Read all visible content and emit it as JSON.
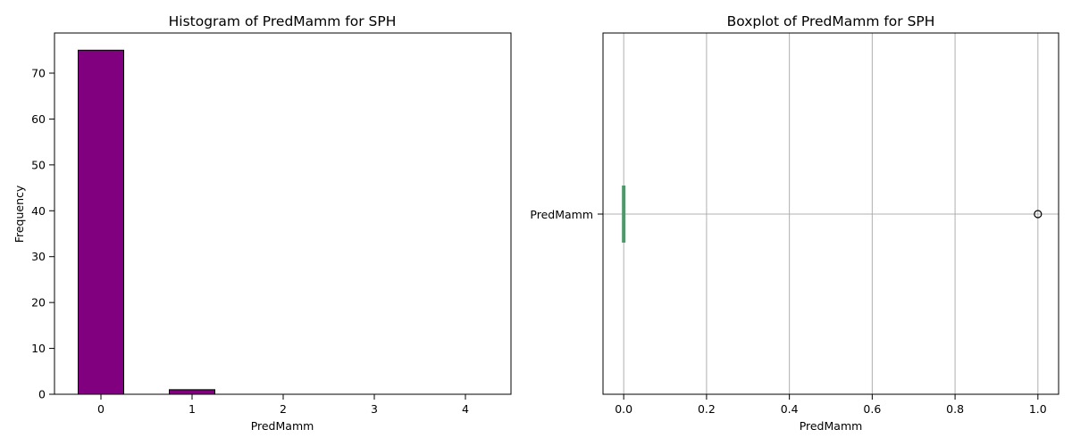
{
  "chart_data": [
    {
      "type": "bar",
      "title": "Histogram of PredMamm for SPH",
      "xlabel": "PredMamm",
      "ylabel": "Frequency",
      "categories": [
        "0",
        "1",
        "2",
        "3",
        "4"
      ],
      "values": [
        75,
        1,
        0,
        0,
        0
      ],
      "ylim": [
        0,
        78.75
      ],
      "yticks": [
        0,
        10,
        20,
        30,
        40,
        50,
        60,
        70
      ],
      "grid": false,
      "bar_color": "#800080",
      "edge_color": "#000000"
    },
    {
      "type": "boxplot",
      "title": "Boxplot of PredMamm for SPH",
      "xlabel": "PredMamm",
      "ylabel": "",
      "category_label": "PredMamm",
      "orientation": "horizontal",
      "stats": {
        "min": 0,
        "q1": 0,
        "median": 0,
        "q3": 0,
        "max": 0
      },
      "outliers": [
        1.0
      ],
      "xlim": [
        -0.05,
        1.05
      ],
      "xticks": [
        0.0,
        0.2,
        0.4,
        0.6,
        0.8,
        1.0
      ],
      "xtick_labels": [
        "0.0",
        "0.2",
        "0.4",
        "0.6",
        "0.8",
        "1.0"
      ],
      "grid": true,
      "box_color": "#4a9a6a"
    }
  ]
}
